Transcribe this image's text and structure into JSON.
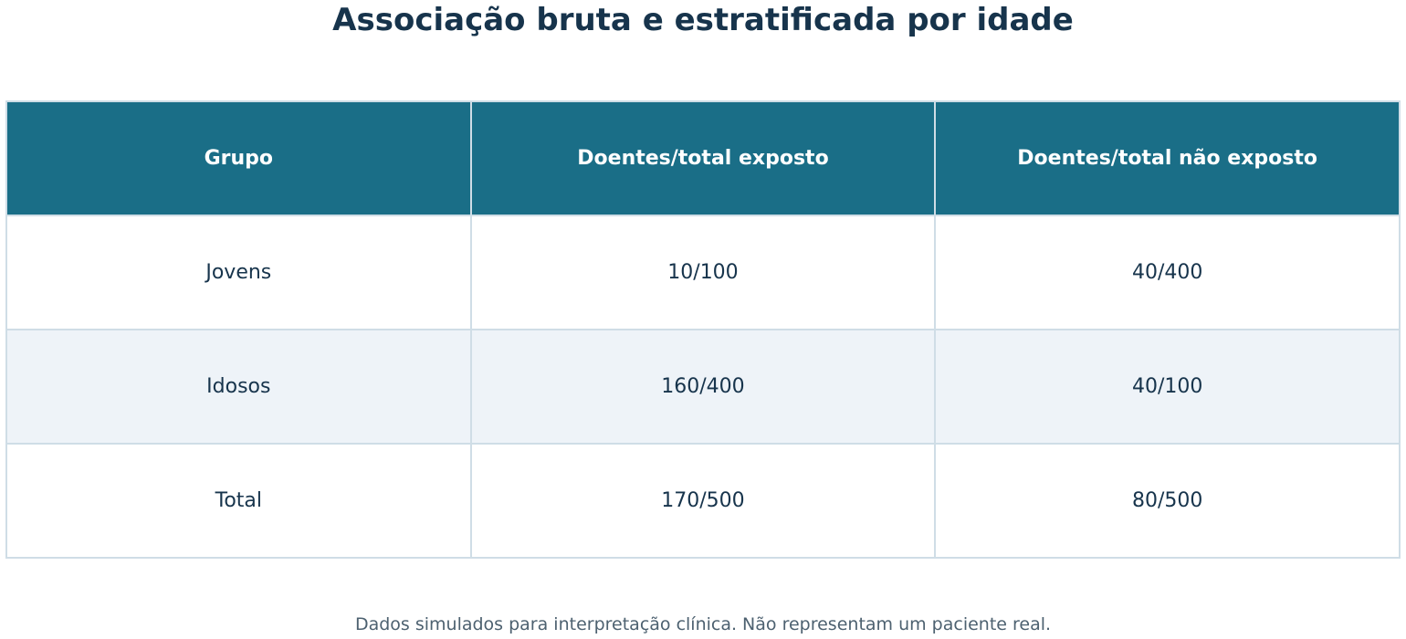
{
  "chart_data": {
    "type": "table",
    "title": "Associação bruta e estratificada por idade",
    "columns": [
      "Grupo",
      "Doentes/total exposto",
      "Doentes/total não exposto"
    ],
    "rows": [
      [
        "Jovens",
        "10/100",
        "40/400"
      ],
      [
        "Idosos",
        "160/400",
        "40/100"
      ],
      [
        "Total",
        "170/500",
        "80/500"
      ]
    ],
    "footnote": "Dados simulados para interpretação clínica. Não representam um paciente real."
  },
  "colors": {
    "title_text": "#17344c",
    "header_background": "#1a6e87",
    "header_text": "#ffffff",
    "cell_text": "#17344c",
    "row_alt_background": "#eef3f8",
    "border": "#cfdde6",
    "footnote_text": "#4d6170"
  }
}
